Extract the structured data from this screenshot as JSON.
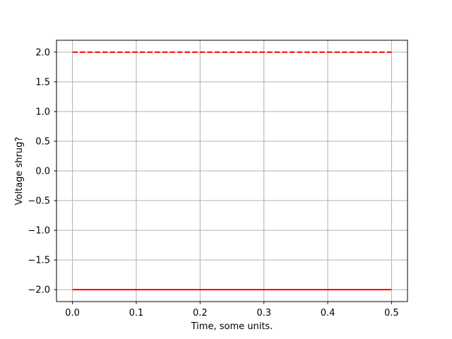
{
  "chart_data": {
    "type": "line",
    "title": "",
    "xlabel": "Time, some units.",
    "ylabel": "Voltage shrug?",
    "xlim": [
      -0.025,
      0.525
    ],
    "ylim": [
      -2.2,
      2.2
    ],
    "xticks": [
      0.0,
      0.1,
      0.2,
      0.3,
      0.4,
      0.5
    ],
    "xtick_labels": [
      "0.0",
      "0.1",
      "0.2",
      "0.3",
      "0.4",
      "0.5"
    ],
    "yticks": [
      -2.0,
      -1.5,
      -1.0,
      -0.5,
      0.0,
      0.5,
      1.0,
      1.5,
      2.0
    ],
    "ytick_labels": [
      "−2.0",
      "−1.5",
      "−1.0",
      "−0.5",
      "0.0",
      "0.5",
      "1.0",
      "1.5",
      "2.0"
    ],
    "grid": true,
    "legend": false,
    "series": [
      {
        "name": "red-dashed",
        "x": [
          0.0,
          0.5
        ],
        "y": [
          2.0,
          2.0
        ],
        "color": "#ff0000",
        "style": "dashed",
        "linewidth": 2
      },
      {
        "name": "red-solid",
        "x": [
          0.0,
          0.5
        ],
        "y": [
          -2.0,
          -2.0
        ],
        "color": "#ff0000",
        "style": "solid",
        "linewidth": 2
      }
    ],
    "colors": {
      "background": "#ffffff",
      "grid": "#b0b0b0",
      "spine": "#000000",
      "text": "#000000"
    }
  }
}
